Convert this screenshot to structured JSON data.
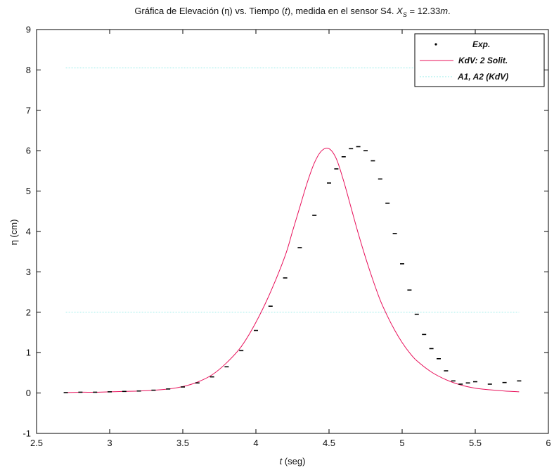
{
  "chart_data": {
    "type": "line",
    "title": {
      "prefix": "Gráfica de Elevación (η) vs. Tiempo (",
      "t": "t",
      "middle": "), medida en el sensor S4.  ",
      "x_var": "X",
      "x_sub": "S",
      "value": " = 12.33",
      "unit": "m",
      "end": "."
    },
    "xlabel": {
      "var": "t",
      "unit": " (seg)"
    },
    "ylabel": "η (cm)",
    "xlim": [
      2.5,
      6
    ],
    "ylim": [
      -1,
      9
    ],
    "xticks": [
      "2.5",
      "3",
      "3.5",
      "4",
      "4.5",
      "5",
      "5.5",
      "6"
    ],
    "yticks": [
      "-1",
      "0",
      "1",
      "2",
      "3",
      "4",
      "5",
      "6",
      "7",
      "8",
      "9"
    ],
    "grid": false,
    "legend_position": "top-right",
    "legend": [
      "Exp.",
      "KdV: 2 Solit.",
      "A1, A2 (KdV)"
    ],
    "series": [
      {
        "name": "Exp.",
        "style": "points",
        "color": "#000000",
        "x": [
          2.7,
          2.8,
          2.9,
          3.0,
          3.1,
          3.2,
          3.3,
          3.4,
          3.5,
          3.6,
          3.7,
          3.8,
          3.9,
          4.0,
          4.1,
          4.2,
          4.3,
          4.4,
          4.5,
          4.55,
          4.6,
          4.65,
          4.7,
          4.75,
          4.8,
          4.85,
          4.9,
          4.95,
          5.0,
          5.05,
          5.1,
          5.15,
          5.2,
          5.25,
          5.3,
          5.35,
          5.4,
          5.45,
          5.5,
          5.6,
          5.7,
          5.8
        ],
        "y": [
          0.01,
          0.02,
          0.02,
          0.03,
          0.04,
          0.05,
          0.07,
          0.1,
          0.15,
          0.25,
          0.4,
          0.65,
          1.05,
          1.55,
          2.15,
          2.85,
          3.6,
          4.4,
          5.2,
          5.55,
          5.85,
          6.05,
          6.1,
          6.0,
          5.75,
          5.3,
          4.7,
          3.95,
          3.2,
          2.55,
          1.95,
          1.45,
          1.1,
          0.85,
          0.55,
          0.3,
          0.22,
          0.25,
          0.28,
          0.22,
          0.26,
          0.3
        ]
      },
      {
        "name": "KdV: 2 Solit.",
        "style": "line",
        "color": "#e8105a",
        "x": [
          2.7,
          2.8,
          2.9,
          3.0,
          3.1,
          3.2,
          3.3,
          3.4,
          3.5,
          3.6,
          3.7,
          3.8,
          3.9,
          4.0,
          4.1,
          4.2,
          4.25,
          4.3,
          4.35,
          4.4,
          4.45,
          4.5,
          4.55,
          4.6,
          4.65,
          4.7,
          4.75,
          4.8,
          4.85,
          4.9,
          4.95,
          5.0,
          5.05,
          5.1,
          5.2,
          5.3,
          5.4,
          5.5,
          5.6,
          5.7,
          5.8
        ],
        "y": [
          0.01,
          0.02,
          0.02,
          0.03,
          0.04,
          0.05,
          0.07,
          0.1,
          0.16,
          0.27,
          0.45,
          0.75,
          1.15,
          1.75,
          2.5,
          3.4,
          4.0,
          4.6,
          5.2,
          5.7,
          6.0,
          6.05,
          5.8,
          5.25,
          4.6,
          3.95,
          3.35,
          2.8,
          2.3,
          1.9,
          1.55,
          1.25,
          1.0,
          0.8,
          0.52,
          0.33,
          0.2,
          0.12,
          0.08,
          0.05,
          0.03
        ]
      },
      {
        "name": "A1, A2 (KdV)",
        "style": "hlines",
        "color": "#aef0ee",
        "values": [
          8.05,
          2.0
        ],
        "xrange": [
          2.7,
          5.8
        ]
      }
    ]
  }
}
